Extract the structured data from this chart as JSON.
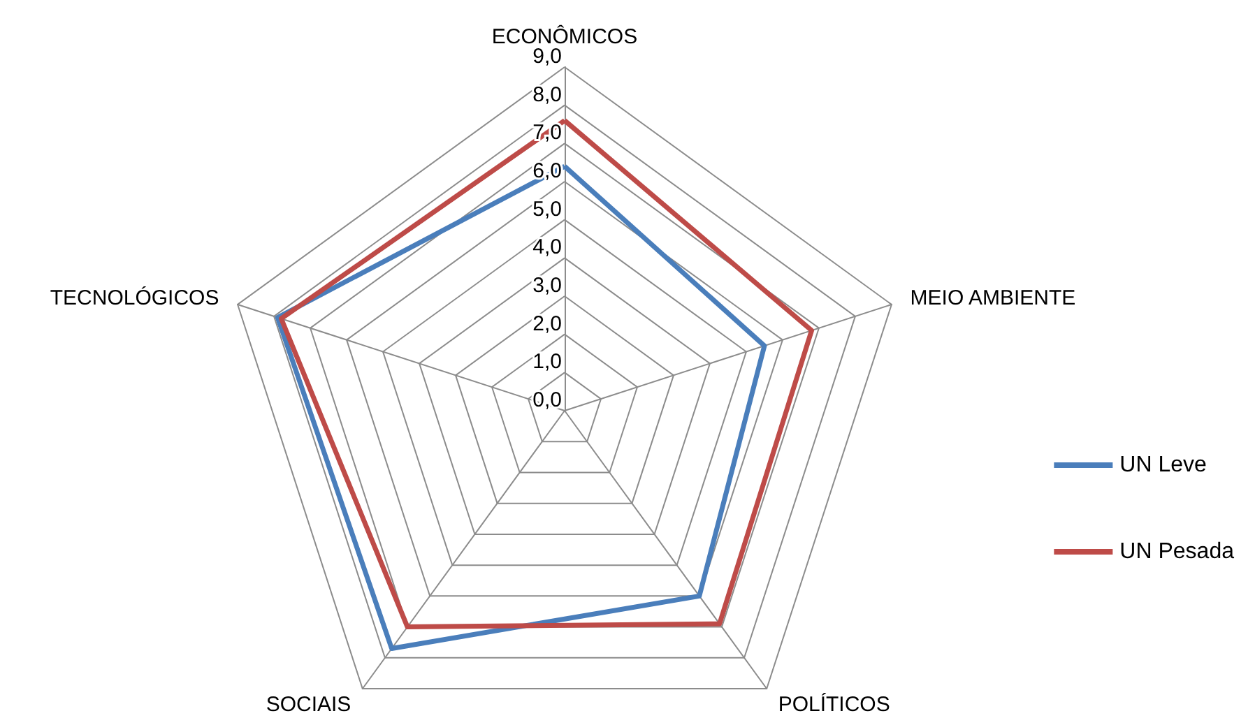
{
  "chart_data": {
    "type": "radar",
    "categories": [
      "ECONÔMICOS",
      "MEIO AMBIENTE",
      "POLÍTICOS",
      "SOCIAIS",
      "TECNOLÓGICOS"
    ],
    "series": [
      {
        "name": "UN Leve",
        "color": "#4a7ebb",
        "values": [
          6.4,
          5.5,
          6.0,
          7.7,
          7.9
        ]
      },
      {
        "name": "UN Pesada",
        "color": "#be4b48",
        "values": [
          7.6,
          6.8,
          6.9,
          7.0,
          7.8
        ]
      }
    ],
    "ylim": [
      0,
      9
    ],
    "yticks": [
      {
        "value": 0,
        "label": "0,0"
      },
      {
        "value": 1,
        "label": "1,0"
      },
      {
        "value": 2,
        "label": "2,0"
      },
      {
        "value": 3,
        "label": "3,0"
      },
      {
        "value": 4,
        "label": "4,0"
      },
      {
        "value": 5,
        "label": "5,0"
      },
      {
        "value": 6,
        "label": "6,0"
      },
      {
        "value": 7,
        "label": "7,0"
      },
      {
        "value": 8,
        "label": "8,0"
      },
      {
        "value": 9,
        "label": "9,0"
      }
    ],
    "legend": "right",
    "marker": "none",
    "line_style": "solid"
  }
}
